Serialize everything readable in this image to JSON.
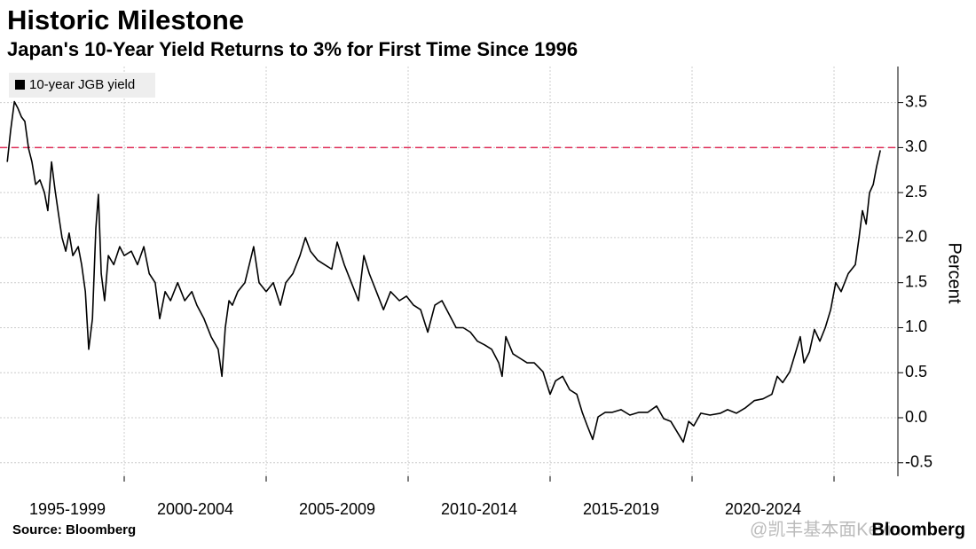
{
  "chart_data": {
    "type": "line",
    "title": "Historic Milestone",
    "subtitle": "Japan's 10-Year Yield Returns to 3% for First Time Since 1996",
    "y_label": "Percent",
    "source": "Source: Bloomberg",
    "brand": "Bloomberg",
    "watermark": "@凯丰基本面Kevin",
    "categories": [
      "1995-1999",
      "2000-2004",
      "2005-2009",
      "2010-2014",
      "2015-2019",
      "2020-2024"
    ],
    "xlim": [
      1995.625,
      2027.25
    ],
    "xticks": [
      2000,
      2005,
      2010,
      2015,
      2020,
      2025
    ],
    "ylim": [
      -0.65,
      3.9
    ],
    "yticks": [
      -0.5,
      {
        "value": 0,
        "label": "0.0"
      },
      0.5,
      {
        "value": 1,
        "label": "1.0"
      },
      1.5,
      {
        "value": 2,
        "label": "2.0"
      },
      2.5,
      {
        "value": 3,
        "label": "3.0"
      },
      3.5
    ],
    "grid": true,
    "reference_line": {
      "value": 3,
      "color": "#e0305a"
    },
    "legend": "top-left",
    "series": [
      {
        "name": "10-year JGB yield",
        "color": "#000000",
        "x": [
          1995.88,
          1996.0,
          1996.13,
          1996.25,
          1996.38,
          1996.5,
          1996.63,
          1996.75,
          1996.88,
          1997.03,
          1997.19,
          1997.31,
          1997.44,
          1997.56,
          1997.69,
          1997.81,
          1997.94,
          1998.06,
          1998.19,
          1998.38,
          1998.5,
          1998.63,
          1998.75,
          1998.88,
          1999.0,
          1999.09,
          1999.19,
          1999.31,
          1999.44,
          1999.63,
          1999.84,
          2000.0,
          2000.25,
          2000.47,
          2000.69,
          2000.88,
          2001.09,
          2001.25,
          2001.44,
          2001.63,
          2001.88,
          2002.13,
          2002.38,
          2002.56,
          2002.81,
          2003.06,
          2003.31,
          2003.44,
          2003.56,
          2003.69,
          2003.81,
          2004.0,
          2004.25,
          2004.56,
          2004.75,
          2005.0,
          2005.25,
          2005.5,
          2005.69,
          2005.94,
          2006.19,
          2006.38,
          2006.56,
          2006.81,
          2007.06,
          2007.31,
          2007.5,
          2007.75,
          2008.0,
          2008.25,
          2008.44,
          2008.63,
          2008.88,
          2009.13,
          2009.38,
          2009.69,
          2009.94,
          2010.19,
          2010.44,
          2010.69,
          2010.94,
          2011.19,
          2011.44,
          2011.69,
          2011.94,
          2012.19,
          2012.44,
          2012.69,
          2012.94,
          2013.19,
          2013.31,
          2013.44,
          2013.69,
          2013.94,
          2014.19,
          2014.44,
          2014.75,
          2015.0,
          2015.19,
          2015.44,
          2015.69,
          2015.94,
          2016.13,
          2016.31,
          2016.5,
          2016.69,
          2016.94,
          2017.19,
          2017.5,
          2017.81,
          2018.13,
          2018.44,
          2018.75,
          2019.0,
          2019.25,
          2019.44,
          2019.69,
          2019.88,
          2020.06,
          2020.31,
          2020.63,
          2021.0,
          2021.25,
          2021.56,
          2021.88,
          2022.19,
          2022.5,
          2022.81,
          2023.0,
          2023.19,
          2023.44,
          2023.63,
          2023.81,
          2023.94,
          2024.13,
          2024.31,
          2024.5,
          2024.69,
          2024.88,
          2025.06,
          2025.25,
          2025.5,
          2025.75,
          2025.88,
          2026.0,
          2026.13,
          2026.25,
          2026.38,
          2026.5,
          2026.63
        ],
        "values": [
          2.84,
          3.19,
          3.51,
          3.44,
          3.34,
          3.29,
          2.99,
          2.84,
          2.59,
          2.64,
          2.5,
          2.3,
          2.84,
          2.54,
          2.25,
          2.0,
          1.85,
          2.05,
          1.8,
          1.9,
          1.7,
          1.4,
          0.76,
          1.1,
          2.1,
          2.48,
          1.6,
          1.3,
          1.8,
          1.7,
          1.9,
          1.8,
          1.85,
          1.7,
          1.9,
          1.6,
          1.5,
          1.1,
          1.4,
          1.3,
          1.5,
          1.3,
          1.4,
          1.25,
          1.1,
          0.9,
          0.76,
          0.46,
          1.0,
          1.3,
          1.25,
          1.4,
          1.5,
          1.9,
          1.5,
          1.4,
          1.5,
          1.25,
          1.5,
          1.6,
          1.8,
          2.0,
          1.85,
          1.75,
          1.7,
          1.65,
          1.95,
          1.7,
          1.5,
          1.3,
          1.8,
          1.6,
          1.4,
          1.2,
          1.4,
          1.3,
          1.35,
          1.25,
          1.2,
          0.95,
          1.25,
          1.3,
          1.15,
          1.0,
          1.0,
          0.95,
          0.85,
          0.81,
          0.76,
          0.61,
          0.46,
          0.9,
          0.71,
          0.66,
          0.61,
          0.61,
          0.51,
          0.26,
          0.41,
          0.46,
          0.31,
          0.26,
          0.06,
          -0.09,
          -0.24,
          0.01,
          0.06,
          0.06,
          0.09,
          0.03,
          0.06,
          0.06,
          0.13,
          -0.01,
          -0.04,
          -0.14,
          -0.27,
          -0.04,
          -0.09,
          0.05,
          0.03,
          0.05,
          0.09,
          0.05,
          0.11,
          0.19,
          0.21,
          0.26,
          0.46,
          0.39,
          0.51,
          0.71,
          0.9,
          0.61,
          0.73,
          0.98,
          0.85,
          1.0,
          1.2,
          1.5,
          1.4,
          1.6,
          1.7,
          2.0,
          2.3,
          2.15,
          2.5,
          2.59,
          2.79,
          2.97
        ]
      }
    ]
  }
}
